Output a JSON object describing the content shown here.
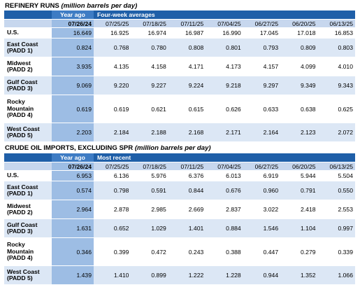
{
  "sections": [
    {
      "title": "REFINERY RUNS",
      "subtitle": "(million barrels per day)",
      "year_ago_label": "Year ago",
      "group_label": "Four-week averages",
      "year_ago_date": "07/26/24",
      "dates": [
        "07/25/25",
        "07/18/25",
        "07/11/25",
        "07/04/25",
        "06/27/25",
        "06/20/25",
        "06/13/25"
      ],
      "rows": [
        {
          "label": "U.S.",
          "year_ago": "16.649",
          "values": [
            "16.925",
            "16.974",
            "16.987",
            "16.990",
            "17.045",
            "17.018",
            "16.853"
          ]
        },
        {
          "label": "East Coast (PADD 1)",
          "year_ago": "0.824",
          "values": [
            "0.768",
            "0.780",
            "0.808",
            "0.801",
            "0.793",
            "0.809",
            "0.803"
          ]
        },
        {
          "label": "Midwest (PADD 2)",
          "year_ago": "3.935",
          "values": [
            "4.135",
            "4.158",
            "4.171",
            "4.173",
            "4.157",
            "4.099",
            "4.010"
          ]
        },
        {
          "label": "Gulf Coast (PADD 3)",
          "year_ago": "9.069",
          "values": [
            "9.220",
            "9.227",
            "9.224",
            "9.218",
            "9.297",
            "9.349",
            "9.343"
          ]
        },
        {
          "label": "Rocky Mountain (PADD 4)",
          "year_ago": "0.619",
          "values": [
            "0.619",
            "0.621",
            "0.615",
            "0.626",
            "0.633",
            "0.638",
            "0.625"
          ]
        },
        {
          "label": "West Coast (PADD 5)",
          "year_ago": "2.203",
          "values": [
            "2.184",
            "2.188",
            "2.168",
            "2.171",
            "2.164",
            "2.123",
            "2.072"
          ]
        }
      ]
    },
    {
      "title": "CRUDE OIL IMPORTS, EXCLUDING SPR",
      "subtitle": "(million barrels per day)",
      "year_ago_label": "Year ago",
      "group_label": "Most recent",
      "year_ago_date": "07/26/24",
      "dates": [
        "07/25/25",
        "07/18/25",
        "07/11/25",
        "07/04/25",
        "06/27/25",
        "06/20/25",
        "06/13/25"
      ],
      "rows": [
        {
          "label": "U.S.",
          "year_ago": "6.953",
          "values": [
            "6.136",
            "5.976",
            "6.376",
            "6.013",
            "6.919",
            "5.944",
            "5.504"
          ]
        },
        {
          "label": "East Coast (PADD 1)",
          "year_ago": "0.574",
          "values": [
            "0.798",
            "0.591",
            "0.844",
            "0.676",
            "0.960",
            "0.791",
            "0.550"
          ]
        },
        {
          "label": "Midwest (PADD 2)",
          "year_ago": "2.964",
          "values": [
            "2.878",
            "2.985",
            "2.669",
            "2.837",
            "3.022",
            "2.418",
            "2.553"
          ]
        },
        {
          "label": "Gulf Coast (PADD 3)",
          "year_ago": "1.631",
          "values": [
            "0.652",
            "1.029",
            "1.401",
            "0.884",
            "1.546",
            "1.104",
            "0.997"
          ]
        },
        {
          "label": "Rocky Mountain (PADD 4)",
          "year_ago": "0.346",
          "values": [
            "0.399",
            "0.472",
            "0.243",
            "0.388",
            "0.447",
            "0.279",
            "0.339"
          ]
        },
        {
          "label": "West Coast (PADD 5)",
          "year_ago": "1.439",
          "values": [
            "1.410",
            "0.899",
            "1.222",
            "1.228",
            "0.944",
            "1.352",
            "1.066"
          ]
        }
      ]
    }
  ],
  "colors": {
    "header_dark": "#1f5fa8",
    "year_ago_column": "#9dbde4",
    "date_row": "#c7d7ee",
    "alt_row": "#dce7f5"
  }
}
